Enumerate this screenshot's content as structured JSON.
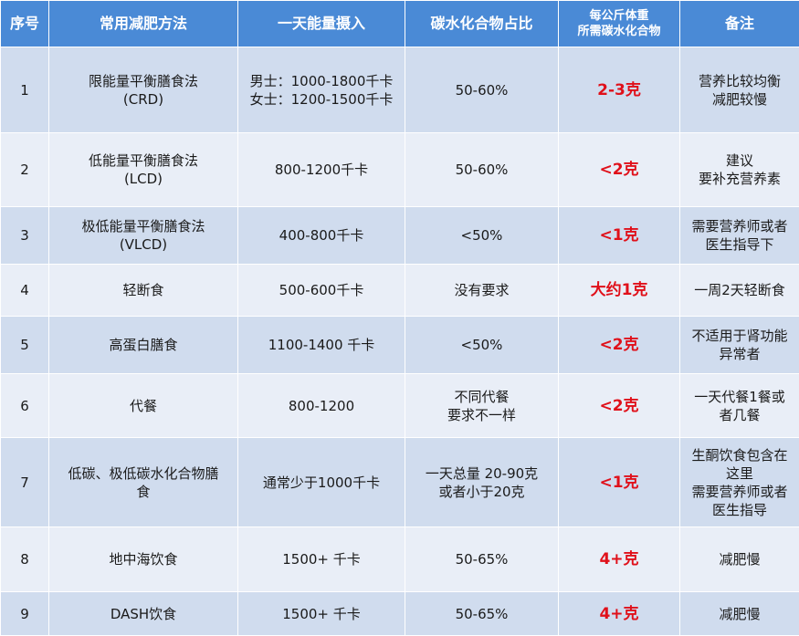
{
  "headers": [
    [
      "序号"
    ],
    [
      "常用减肥方法"
    ],
    [
      "一天能量摄入"
    ],
    [
      "碳水化合物占比"
    ],
    [
      "每公斤体重",
      "所需碳水化合物"
    ],
    [
      "备注"
    ]
  ],
  "rows": [
    {
      "no": "1",
      "method": [
        "限能量平衡膳食法",
        "(CRD)"
      ],
      "energy": [
        "男士：1000-1800千卡",
        "女士：1200-1500千卡"
      ],
      "ratio": [
        "50-60%"
      ],
      "carb": "2-3克",
      "note": [
        "营养比较均衡",
        "减肥较慢"
      ]
    },
    {
      "no": "2",
      "method": [
        "低能量平衡膳食法",
        "(LCD)"
      ],
      "energy": [
        "800-1200千卡"
      ],
      "ratio": [
        "50-60%"
      ],
      "carb": "<2克",
      "note": [
        "建议",
        "要补充营养素"
      ]
    },
    {
      "no": "3",
      "method": [
        "极低能量平衡膳食法",
        "(VLCD)"
      ],
      "energy": [
        "400-800千卡"
      ],
      "ratio": [
        "<50%"
      ],
      "carb": "<1克",
      "note": [
        "需要营养师或者",
        "医生指导下"
      ]
    },
    {
      "no": "4",
      "method": [
        "轻断食"
      ],
      "energy": [
        "500-600千卡"
      ],
      "ratio": [
        "没有要求"
      ],
      "carb": "大约1克",
      "note": [
        "一周2天轻断食"
      ]
    },
    {
      "no": "5",
      "method": [
        "高蛋白膳食"
      ],
      "energy": [
        "1100-1400 千卡"
      ],
      "ratio": [
        "<50%"
      ],
      "carb": "<2克",
      "note": [
        "不适用于肾功能",
        "异常者"
      ]
    },
    {
      "no": "6",
      "method": [
        "代餐"
      ],
      "energy": [
        "800-1200"
      ],
      "ratio": [
        "不同代餐",
        "要求不一样"
      ],
      "carb": "<2克",
      "note": [
        "一天代餐1餐或",
        "者几餐"
      ]
    },
    {
      "no": "7",
      "method": [
        "低碳、极低碳水化合物膳",
        "食"
      ],
      "energy": [
        "通常少于1000千卡"
      ],
      "ratio": [
        "一天总量 20-90克",
        "或者小于20克"
      ],
      "carb": "<1克",
      "note": [
        "生酮饮食包含在",
        "这里",
        "需要营养师或者",
        "医生指导"
      ]
    },
    {
      "no": "8",
      "method": [
        "地中海饮食"
      ],
      "energy": [
        "1500+ 千卡"
      ],
      "ratio": [
        "50-65%"
      ],
      "carb": "4+克",
      "note": [
        "减肥慢"
      ]
    },
    {
      "no": "9",
      "method": [
        "DASH饮食"
      ],
      "energy": [
        "1500+ 千卡"
      ],
      "ratio": [
        "50-65%"
      ],
      "carb": "4+克",
      "note": [
        "减肥慢"
      ]
    }
  ],
  "colors": {
    "header_bg": "#4a8ad6",
    "row_odd": "#d0dcee",
    "row_even": "#e9eef7",
    "carb_text": "#e0101a"
  }
}
